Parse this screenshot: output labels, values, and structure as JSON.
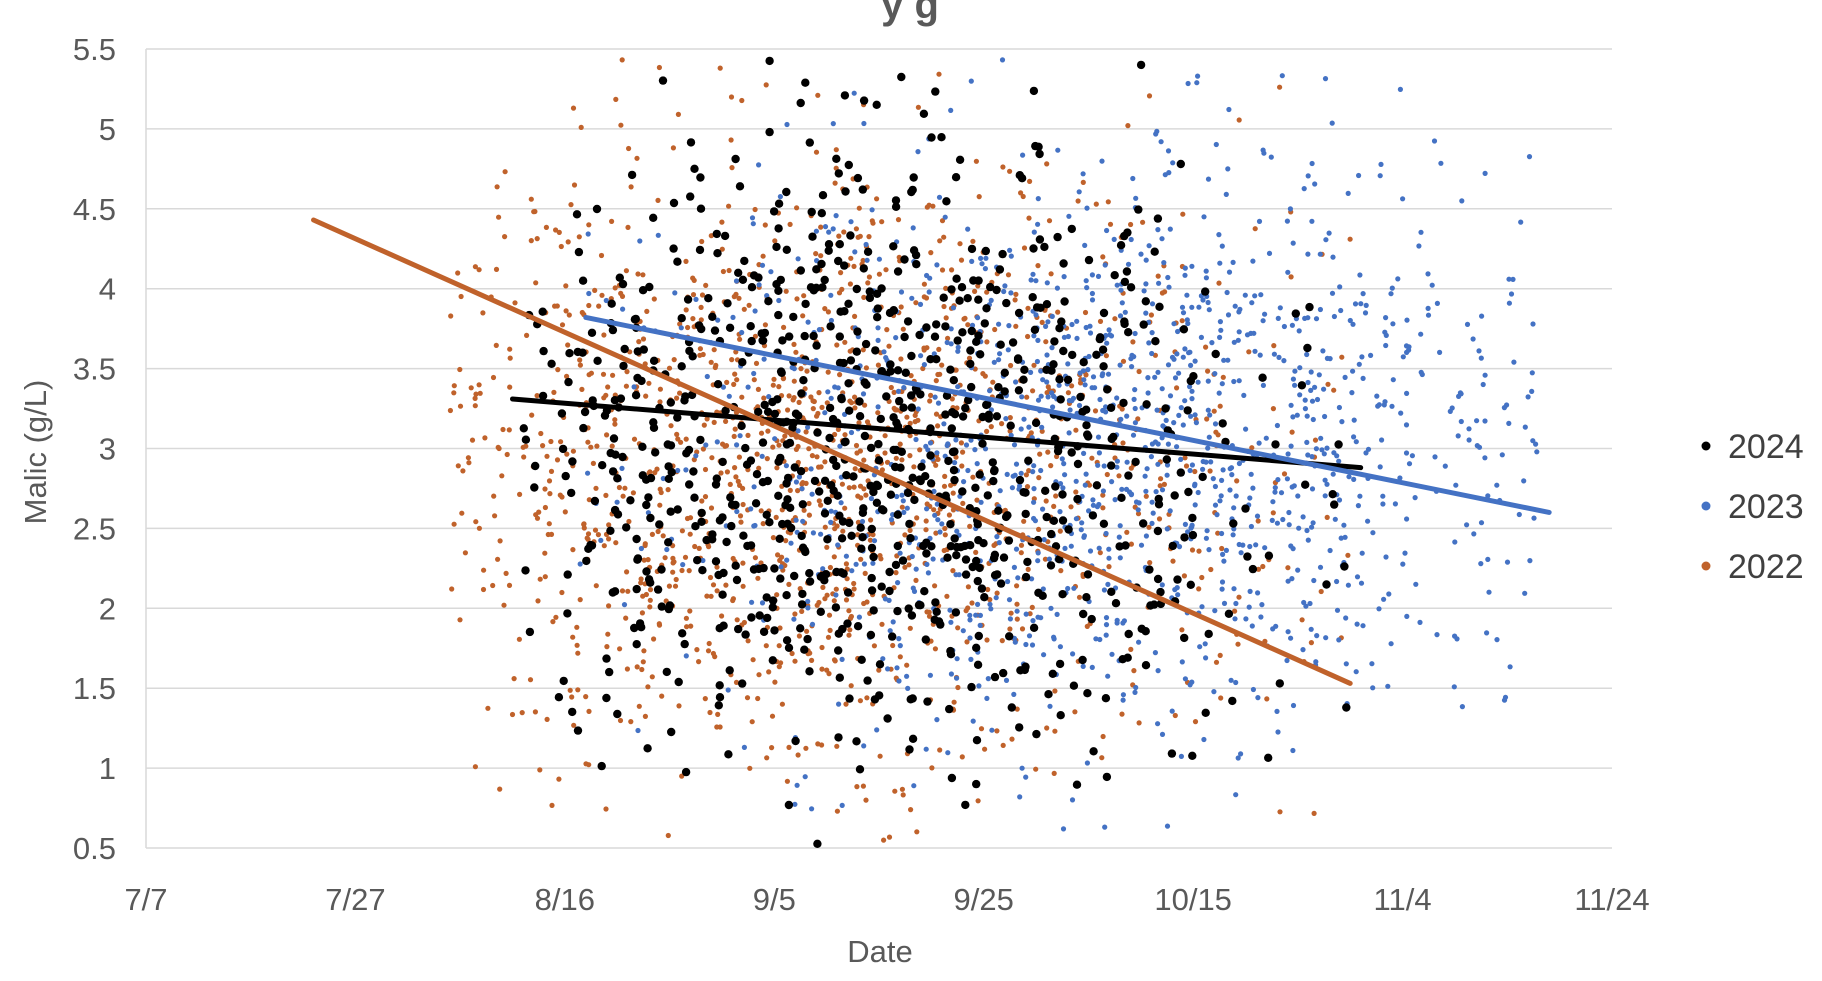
{
  "chart_data": {
    "type": "scatter",
    "title_visible_fragment": "y                  g",
    "xlabel": "Date",
    "ylabel": "Malic (g/L)",
    "x_ticks": [
      "7/7",
      "7/27",
      "8/16",
      "9/5",
      "9/25",
      "10/15",
      "11/4",
      "11/24"
    ],
    "x_tick_days": [
      0,
      20,
      40,
      60,
      80,
      100,
      120,
      140
    ],
    "y_ticks": [
      "0.5",
      "1",
      "1.5",
      "2",
      "2.5",
      "3",
      "3.5",
      "4",
      "4.5",
      "5",
      "5.5"
    ],
    "xlim_days": [
      0,
      140
    ],
    "x_origin_date": "7/7",
    "ylim": [
      0.5,
      5.5
    ],
    "grid": "horizontal",
    "legend_position": "right",
    "series": [
      {
        "name": "2024",
        "color": "#000000",
        "marker": "large-dot",
        "x_range_days": [
          36,
          115
        ],
        "center_day": 68,
        "y_center": 3.0,
        "point_count": 900,
        "trendline": {
          "x": [
            "8/11",
            "10/31"
          ],
          "y": [
            3.31,
            2.88
          ]
        }
      },
      {
        "name": "2023",
        "color": "#4472C4",
        "marker": "small-dot",
        "x_range_days": [
          41,
          133
        ],
        "center_day": 95,
        "y_center": 3.0,
        "point_count": 1300,
        "trendline": {
          "x": [
            "8/18",
            "11/18"
          ],
          "y": [
            3.82,
            2.6
          ]
        }
      },
      {
        "name": "2022",
        "color": "#C0622B",
        "marker": "small-dot",
        "x_range_days": [
          29,
          115
        ],
        "center_day": 64,
        "y_center": 2.9,
        "point_count": 1400,
        "trendline": {
          "x": [
            "7/23",
            "10/30"
          ],
          "y": [
            4.43,
            1.53
          ]
        }
      }
    ]
  }
}
